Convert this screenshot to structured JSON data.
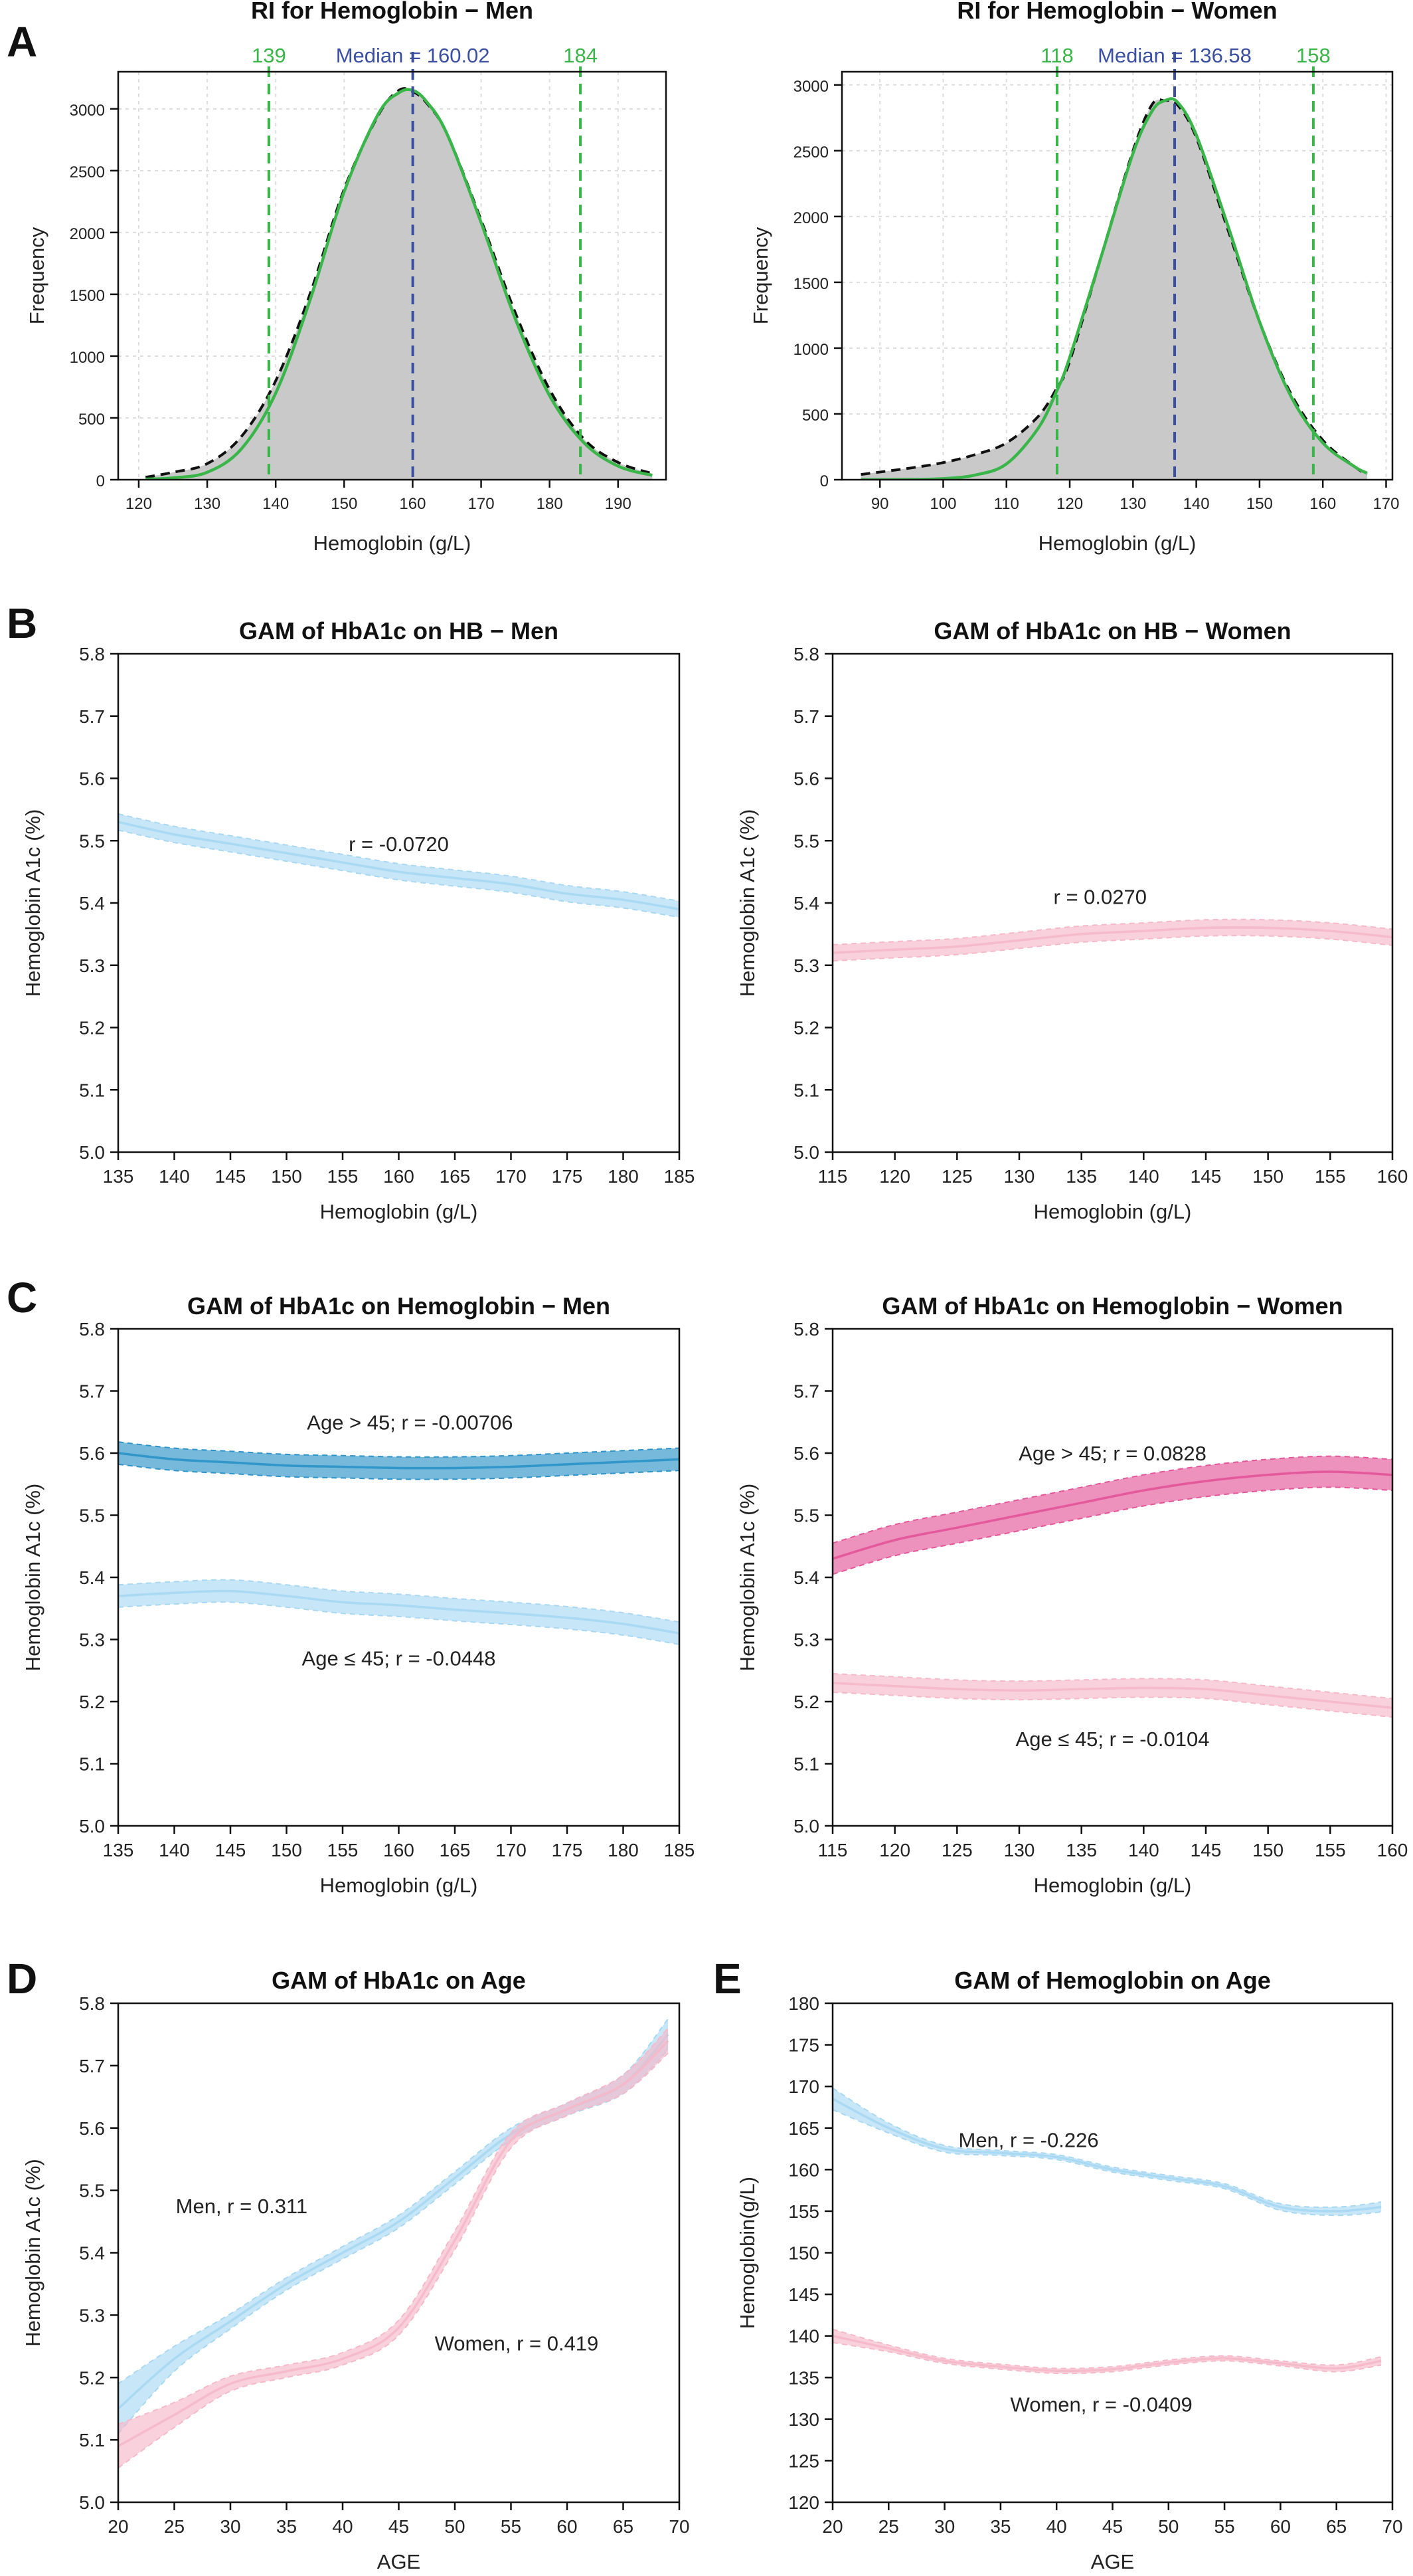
{
  "colors": {
    "men_light": "#a9d8f2",
    "men_dark": "#2d93c8",
    "women_light": "#f6b9c9",
    "women_dark": "#e4569a",
    "green": "#3ab54a",
    "blue": "#3b4fa0",
    "hist_fill": "#c9c9c9"
  },
  "chart_data": [
    {
      "id": "A1",
      "panel_label": "A",
      "type": "area",
      "title": "RI for Hemoglobin − Men",
      "xlabel": "Hemoglobin (g/L)",
      "ylabel": "Frequency",
      "xlim": [
        117,
        197
      ],
      "ylim": [
        0,
        3300
      ],
      "xticks": [
        120,
        130,
        140,
        150,
        160,
        170,
        180,
        190
      ],
      "yticks": [
        0,
        500,
        1000,
        1500,
        2000,
        2500,
        3000
      ],
      "histogram": {
        "x": [
          121,
          125,
          130,
          135,
          140,
          145,
          150,
          155,
          158,
          160,
          162,
          165,
          170,
          175,
          180,
          185,
          190,
          195
        ],
        "y": [
          20,
          60,
          130,
          350,
          800,
          1500,
          2350,
          2950,
          3150,
          3140,
          3050,
          2800,
          2100,
          1350,
          730,
          330,
          140,
          50
        ]
      },
      "fit_curve": {
        "x": [
          121,
          125,
          130,
          135,
          140,
          145,
          150,
          155,
          158,
          160,
          162,
          165,
          170,
          175,
          180,
          185,
          190,
          195
        ],
        "y": [
          5,
          15,
          60,
          250,
          700,
          1450,
          2330,
          2960,
          3130,
          3150,
          3060,
          2800,
          2080,
          1300,
          680,
          300,
          110,
          35
        ]
      },
      "ref_lines": [
        {
          "x": 139,
          "label": "139"
        },
        {
          "x": 184.5,
          "label": "184"
        }
      ],
      "median_line": {
        "x": 160.02,
        "label": "Median = 160.02"
      }
    },
    {
      "id": "A2",
      "panel_label": "",
      "type": "area",
      "title": "RI for Hemoglobin − Women",
      "xlabel": "Hemoglobin (g/L)",
      "ylabel": "Frequency",
      "xlim": [
        84,
        171
      ],
      "ylim": [
        0,
        3100
      ],
      "xticks": [
        90,
        100,
        110,
        120,
        130,
        140,
        150,
        160,
        170
      ],
      "yticks": [
        0,
        500,
        1000,
        1500,
        2000,
        2500,
        3000
      ],
      "histogram": {
        "x": [
          87,
          95,
          100,
          105,
          110,
          115,
          118,
          120,
          125,
          130,
          133,
          135,
          137,
          140,
          145,
          150,
          155,
          160,
          165,
          167
        ],
        "y": [
          40,
          90,
          130,
          190,
          280,
          480,
          700,
          900,
          1700,
          2500,
          2850,
          2880,
          2850,
          2600,
          1900,
          1200,
          650,
          300,
          100,
          40
        ]
      },
      "fit_curve": {
        "x": [
          87,
          95,
          100,
          105,
          110,
          115,
          118,
          120,
          125,
          130,
          133,
          135,
          137,
          140,
          145,
          150,
          155,
          160,
          165,
          167
        ],
        "y": [
          0,
          2,
          8,
          35,
          120,
          390,
          680,
          930,
          1700,
          2480,
          2800,
          2880,
          2870,
          2620,
          1930,
          1200,
          630,
          280,
          100,
          50
        ]
      },
      "ref_lines": [
        {
          "x": 118,
          "label": "118"
        },
        {
          "x": 158.5,
          "label": "158"
        }
      ],
      "median_line": {
        "x": 136.58,
        "label": "Median = 136.58"
      }
    },
    {
      "id": "B1",
      "panel_label": "B",
      "type": "line",
      "title": "GAM of HbA1c on HB − Men",
      "xlabel": "Hemoglobin (g/L)",
      "ylabel": "Hemoglobin A1c (%)",
      "xlim": [
        135,
        185
      ],
      "ylim": [
        5.0,
        5.8
      ],
      "xticks": [
        135,
        140,
        145,
        150,
        155,
        160,
        165,
        170,
        175,
        180,
        185
      ],
      "yticks": [
        5.0,
        5.1,
        5.2,
        5.3,
        5.4,
        5.5,
        5.6,
        5.7,
        5.8
      ],
      "series": [
        {
          "x": [
            135,
            140,
            145,
            150,
            155,
            160,
            165,
            170,
            175,
            180,
            185
          ],
          "y": [
            5.53,
            5.51,
            5.495,
            5.48,
            5.465,
            5.45,
            5.44,
            5.43,
            5.415,
            5.405,
            5.39
          ],
          "ci": 0.013,
          "color": "men_light"
        }
      ],
      "annotations": [
        {
          "x": 160,
          "y": 5.495,
          "text": "r = -0.0720"
        }
      ]
    },
    {
      "id": "B2",
      "panel_label": "",
      "type": "line",
      "title": "GAM of HbA1c on HB − Women",
      "xlabel": "Hemoglobin (g/L)",
      "ylabel": "Hemoglobin A1c (%)",
      "xlim": [
        115,
        160
      ],
      "ylim": [
        5.0,
        5.8
      ],
      "xticks": [
        115,
        120,
        125,
        130,
        135,
        140,
        145,
        150,
        155,
        160
      ],
      "yticks": [
        5.0,
        5.1,
        5.2,
        5.3,
        5.4,
        5.5,
        5.6,
        5.7,
        5.8
      ],
      "series": [
        {
          "x": [
            115,
            120,
            125,
            130,
            135,
            140,
            145,
            150,
            155,
            160
          ],
          "y": [
            5.32,
            5.325,
            5.33,
            5.34,
            5.35,
            5.355,
            5.36,
            5.36,
            5.355,
            5.345
          ],
          "ci": 0.013,
          "color": "women_light"
        }
      ],
      "annotations": [
        {
          "x": 136.5,
          "y": 5.41,
          "text": "r = 0.0270"
        }
      ]
    },
    {
      "id": "C1",
      "panel_label": "C",
      "type": "line",
      "title": "GAM of HbA1c on Hemoglobin − Men",
      "xlabel": "Hemoglobin (g/L)",
      "ylabel": "Hemoglobin A1c (%)",
      "xlim": [
        135,
        185
      ],
      "ylim": [
        5.0,
        5.8
      ],
      "xticks": [
        135,
        140,
        145,
        150,
        155,
        160,
        165,
        170,
        175,
        180,
        185
      ],
      "yticks": [
        5.0,
        5.1,
        5.2,
        5.3,
        5.4,
        5.5,
        5.6,
        5.7,
        5.8
      ],
      "series": [
        {
          "x": [
            135,
            140,
            145,
            150,
            155,
            160,
            165,
            170,
            175,
            180,
            185
          ],
          "y": [
            5.6,
            5.59,
            5.585,
            5.58,
            5.578,
            5.576,
            5.576,
            5.578,
            5.582,
            5.586,
            5.59
          ],
          "ci": 0.018,
          "color": "men_dark"
        },
        {
          "x": [
            135,
            140,
            145,
            150,
            155,
            160,
            165,
            170,
            175,
            180,
            185
          ],
          "y": [
            5.37,
            5.375,
            5.378,
            5.37,
            5.36,
            5.355,
            5.348,
            5.342,
            5.335,
            5.325,
            5.31
          ],
          "ci": 0.018,
          "color": "men_light"
        }
      ],
      "annotations": [
        {
          "x": 161,
          "y": 5.65,
          "text": "Age > 45; r = -0.00706"
        },
        {
          "x": 160,
          "y": 5.27,
          "text": "Age ≤ 45; r = -0.0448"
        }
      ]
    },
    {
      "id": "C2",
      "panel_label": "",
      "type": "line",
      "title": "GAM of HbA1c on Hemoglobin − Women",
      "xlabel": "Hemoglobin (g/L)",
      "ylabel": "Hemoglobin A1c (%)",
      "xlim": [
        115,
        160
      ],
      "ylim": [
        5.0,
        5.8
      ],
      "xticks": [
        115,
        120,
        125,
        130,
        135,
        140,
        145,
        150,
        155,
        160
      ],
      "yticks": [
        5.0,
        5.1,
        5.2,
        5.3,
        5.4,
        5.5,
        5.6,
        5.7,
        5.8
      ],
      "series": [
        {
          "x": [
            115,
            120,
            125,
            130,
            135,
            140,
            145,
            150,
            155,
            160
          ],
          "y": [
            5.43,
            5.46,
            5.48,
            5.5,
            5.52,
            5.54,
            5.555,
            5.565,
            5.57,
            5.565
          ],
          "ci": 0.025,
          "color": "women_dark"
        },
        {
          "x": [
            115,
            120,
            125,
            130,
            135,
            140,
            145,
            150,
            155,
            160
          ],
          "y": [
            5.23,
            5.225,
            5.22,
            5.218,
            5.22,
            5.222,
            5.22,
            5.21,
            5.2,
            5.19
          ],
          "ci": 0.015,
          "color": "women_light"
        }
      ],
      "annotations": [
        {
          "x": 137.5,
          "y": 5.6,
          "text": "Age > 45; r = 0.0828"
        },
        {
          "x": 137.5,
          "y": 5.14,
          "text": "Age ≤ 45; r = -0.0104"
        }
      ]
    },
    {
      "id": "D",
      "panel_label": "D",
      "type": "line",
      "title": "GAM of HbA1c on Age",
      "xlabel": "AGE",
      "ylabel": "Hemoglobin A1c (%)",
      "xlim": [
        20,
        70
      ],
      "ylim": [
        5.0,
        5.8
      ],
      "xticks": [
        20,
        25,
        30,
        35,
        40,
        45,
        50,
        55,
        60,
        65,
        70
      ],
      "yticks": [
        5.0,
        5.1,
        5.2,
        5.3,
        5.4,
        5.5,
        5.6,
        5.7,
        5.8
      ],
      "series": [
        {
          "name": "Men",
          "x": [
            20,
            25,
            30,
            35,
            40,
            45,
            50,
            55,
            60,
            65,
            69
          ],
          "y": [
            5.15,
            5.23,
            5.29,
            5.35,
            5.4,
            5.45,
            5.52,
            5.59,
            5.63,
            5.67,
            5.75
          ],
          "ci": [
            0.04,
            0.02,
            0.012,
            0.01,
            0.01,
            0.01,
            0.01,
            0.01,
            0.01,
            0.015,
            0.025
          ],
          "color": "men_light"
        },
        {
          "name": "Women",
          "x": [
            20,
            25,
            30,
            35,
            40,
            45,
            50,
            55,
            60,
            65,
            69
          ],
          "y": [
            5.09,
            5.14,
            5.19,
            5.21,
            5.23,
            5.28,
            5.42,
            5.58,
            5.63,
            5.67,
            5.74
          ],
          "ci": [
            0.035,
            0.02,
            0.012,
            0.01,
            0.01,
            0.012,
            0.015,
            0.012,
            0.01,
            0.015,
            0.02
          ],
          "color": "women_light"
        }
      ],
      "annotations": [
        {
          "x": 31,
          "y": 5.475,
          "text": "Men, r = 0.311"
        },
        {
          "x": 55.5,
          "y": 5.255,
          "text": "Women, r = 0.419"
        }
      ]
    },
    {
      "id": "E",
      "panel_label": "E",
      "type": "line",
      "title": "GAM of Hemoglobin on Age",
      "xlabel": "AGE",
      "ylabel": "Hemoglobin(g/L)",
      "xlim": [
        20,
        70
      ],
      "ylim": [
        120,
        180
      ],
      "xticks": [
        20,
        25,
        30,
        35,
        40,
        45,
        50,
        55,
        60,
        65,
        70
      ],
      "yticks": [
        120,
        125,
        130,
        135,
        140,
        145,
        150,
        155,
        160,
        165,
        170,
        175,
        180
      ],
      "series": [
        {
          "name": "Men",
          "x": [
            20,
            25,
            30,
            35,
            40,
            45,
            50,
            55,
            60,
            65,
            69
          ],
          "y": [
            168.5,
            165,
            162.5,
            162,
            161.5,
            160,
            159,
            158,
            155.5,
            155,
            155.5
          ],
          "ci": [
            1.3,
            0.6,
            0.4,
            0.3,
            0.3,
            0.3,
            0.3,
            0.3,
            0.4,
            0.5,
            0.6
          ],
          "color": "men_light"
        },
        {
          "name": "Women",
          "x": [
            20,
            25,
            30,
            35,
            40,
            45,
            50,
            55,
            60,
            65,
            69
          ],
          "y": [
            140,
            138.5,
            137,
            136.3,
            135.8,
            136,
            136.8,
            137.3,
            136.7,
            136.1,
            137
          ],
          "ci": [
            0.8,
            0.4,
            0.3,
            0.3,
            0.3,
            0.3,
            0.3,
            0.3,
            0.3,
            0.4,
            0.5
          ],
          "color": "women_light"
        }
      ],
      "annotations": [
        {
          "x": 37.5,
          "y": 163.6,
          "text": "Men, r = -0.226"
        },
        {
          "x": 44,
          "y": 131.8,
          "text": "Women, r = -0.0409"
        }
      ]
    }
  ]
}
